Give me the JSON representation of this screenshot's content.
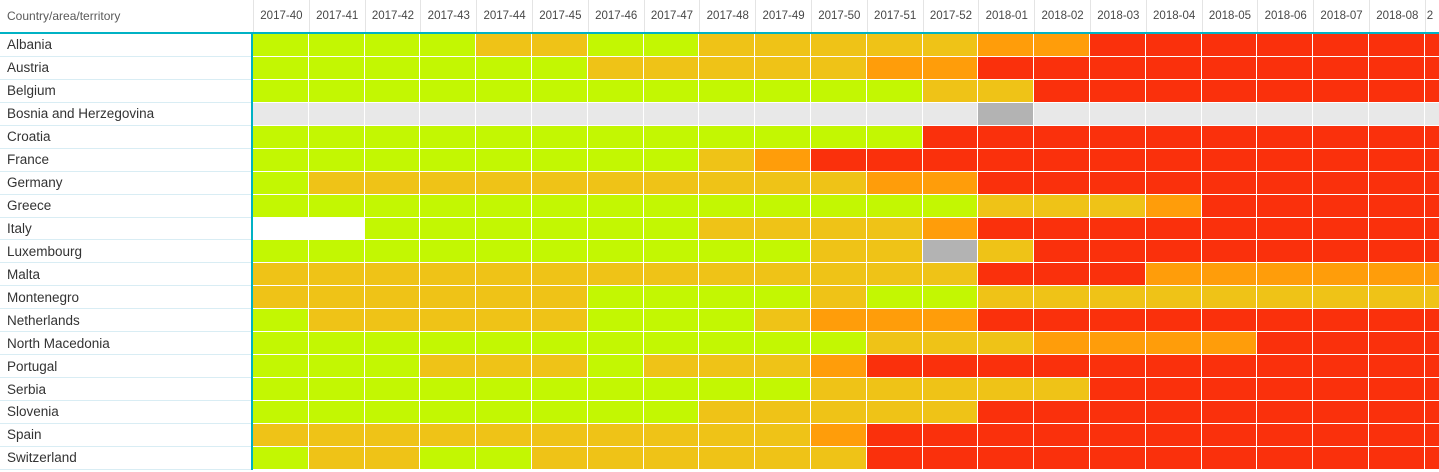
{
  "chart_data": {
    "type": "heatmap",
    "title": "",
    "corner_label": "Country/area/territory",
    "legend_position": "none",
    "grid": "white cell gaps",
    "columns": [
      "2017-40",
      "2017-41",
      "2017-42",
      "2017-43",
      "2017-44",
      "2017-45",
      "2017-46",
      "2017-47",
      "2017-48",
      "2017-49",
      "2017-50",
      "2017-51",
      "2017-52",
      "2018-01",
      "2018-02",
      "2018-03",
      "2018-04",
      "2018-05",
      "2018-06",
      "2018-07",
      "2018-08",
      "2"
    ],
    "value_legend": [
      "green",
      "yellow",
      "orange",
      "red",
      "gray",
      "darkgray",
      "white"
    ],
    "rows": [
      {
        "label": "Albania",
        "cells": [
          "green",
          "green",
          "green",
          "green",
          "yellow",
          "yellow",
          "green",
          "green",
          "yellow",
          "yellow",
          "yellow",
          "yellow",
          "yellow",
          "orange",
          "orange",
          "red",
          "red",
          "red",
          "red",
          "red",
          "red",
          "red"
        ]
      },
      {
        "label": "Austria",
        "cells": [
          "green",
          "green",
          "green",
          "green",
          "green",
          "green",
          "yellow",
          "yellow",
          "yellow",
          "yellow",
          "yellow",
          "orange",
          "orange",
          "red",
          "red",
          "red",
          "red",
          "red",
          "red",
          "red",
          "red",
          "red"
        ]
      },
      {
        "label": "Belgium",
        "cells": [
          "green",
          "green",
          "green",
          "green",
          "green",
          "green",
          "green",
          "green",
          "green",
          "green",
          "green",
          "green",
          "yellow",
          "yellow",
          "red",
          "red",
          "red",
          "red",
          "red",
          "red",
          "red",
          "red"
        ]
      },
      {
        "label": "Bosnia and Herzegovina",
        "cells": [
          "gray",
          "gray",
          "gray",
          "gray",
          "gray",
          "gray",
          "gray",
          "gray",
          "gray",
          "gray",
          "gray",
          "gray",
          "gray",
          "darkgray",
          "gray",
          "gray",
          "gray",
          "gray",
          "gray",
          "gray",
          "gray",
          "gray"
        ]
      },
      {
        "label": "Croatia",
        "cells": [
          "green",
          "green",
          "green",
          "green",
          "green",
          "green",
          "green",
          "green",
          "green",
          "green",
          "green",
          "green",
          "red",
          "red",
          "red",
          "red",
          "red",
          "red",
          "red",
          "red",
          "red",
          "red"
        ]
      },
      {
        "label": "France",
        "cells": [
          "green",
          "green",
          "green",
          "green",
          "green",
          "green",
          "green",
          "green",
          "yellow",
          "orange",
          "red",
          "red",
          "red",
          "red",
          "red",
          "red",
          "red",
          "red",
          "red",
          "red",
          "red",
          "red"
        ]
      },
      {
        "label": "Germany",
        "cells": [
          "green",
          "yellow",
          "yellow",
          "yellow",
          "yellow",
          "yellow",
          "yellow",
          "yellow",
          "yellow",
          "yellow",
          "yellow",
          "orange",
          "orange",
          "red",
          "red",
          "red",
          "red",
          "red",
          "red",
          "red",
          "red",
          "red"
        ]
      },
      {
        "label": "Greece",
        "cells": [
          "green",
          "green",
          "green",
          "green",
          "green",
          "green",
          "green",
          "green",
          "green",
          "green",
          "green",
          "green",
          "green",
          "yellow",
          "yellow",
          "yellow",
          "orange",
          "red",
          "red",
          "red",
          "red",
          "red"
        ]
      },
      {
        "label": "Italy",
        "cells": [
          "white",
          "white",
          "green",
          "green",
          "green",
          "green",
          "green",
          "green",
          "yellow",
          "yellow",
          "yellow",
          "yellow",
          "orange",
          "red",
          "red",
          "red",
          "red",
          "red",
          "red",
          "red",
          "red",
          "red"
        ]
      },
      {
        "label": "Luxembourg",
        "cells": [
          "green",
          "green",
          "green",
          "green",
          "green",
          "green",
          "green",
          "green",
          "green",
          "green",
          "yellow",
          "yellow",
          "darkgray",
          "yellow",
          "red",
          "red",
          "red",
          "red",
          "red",
          "red",
          "red",
          "red"
        ]
      },
      {
        "label": "Malta",
        "cells": [
          "yellow",
          "yellow",
          "yellow",
          "yellow",
          "yellow",
          "yellow",
          "yellow",
          "yellow",
          "yellow",
          "yellow",
          "yellow",
          "yellow",
          "yellow",
          "red",
          "red",
          "red",
          "orange",
          "orange",
          "orange",
          "orange",
          "orange",
          "orange"
        ]
      },
      {
        "label": "Montenegro",
        "cells": [
          "yellow",
          "yellow",
          "yellow",
          "yellow",
          "yellow",
          "yellow",
          "green",
          "green",
          "green",
          "green",
          "yellow",
          "green",
          "green",
          "yellow",
          "yellow",
          "yellow",
          "yellow",
          "yellow",
          "yellow",
          "yellow",
          "yellow",
          "yellow"
        ]
      },
      {
        "label": "Netherlands",
        "cells": [
          "green",
          "yellow",
          "yellow",
          "yellow",
          "yellow",
          "yellow",
          "green",
          "green",
          "green",
          "yellow",
          "orange",
          "orange",
          "orange",
          "red",
          "red",
          "red",
          "red",
          "red",
          "red",
          "red",
          "red",
          "red"
        ]
      },
      {
        "label": "North Macedonia",
        "cells": [
          "green",
          "green",
          "green",
          "green",
          "green",
          "green",
          "green",
          "green",
          "green",
          "green",
          "green",
          "yellow",
          "yellow",
          "yellow",
          "orange",
          "orange",
          "orange",
          "orange",
          "red",
          "red",
          "red",
          "red"
        ]
      },
      {
        "label": "Portugal",
        "cells": [
          "green",
          "green",
          "green",
          "yellow",
          "yellow",
          "yellow",
          "green",
          "yellow",
          "yellow",
          "yellow",
          "orange",
          "red",
          "red",
          "red",
          "red",
          "red",
          "red",
          "red",
          "red",
          "red",
          "red",
          "red"
        ]
      },
      {
        "label": "Serbia",
        "cells": [
          "green",
          "green",
          "green",
          "green",
          "green",
          "green",
          "green",
          "green",
          "green",
          "green",
          "yellow",
          "yellow",
          "yellow",
          "yellow",
          "yellow",
          "red",
          "red",
          "red",
          "red",
          "red",
          "red",
          "red"
        ]
      },
      {
        "label": "Slovenia",
        "cells": [
          "green",
          "green",
          "green",
          "green",
          "green",
          "green",
          "green",
          "green",
          "yellow",
          "yellow",
          "yellow",
          "yellow",
          "yellow",
          "red",
          "red",
          "red",
          "red",
          "red",
          "red",
          "red",
          "red",
          "red"
        ]
      },
      {
        "label": "Spain",
        "cells": [
          "yellow",
          "yellow",
          "yellow",
          "yellow",
          "yellow",
          "yellow",
          "yellow",
          "yellow",
          "yellow",
          "yellow",
          "orange",
          "red",
          "red",
          "red",
          "red",
          "red",
          "red",
          "red",
          "red",
          "red",
          "red",
          "red"
        ]
      },
      {
        "label": "Switzerland",
        "cells": [
          "green",
          "yellow",
          "yellow",
          "green",
          "green",
          "yellow",
          "yellow",
          "yellow",
          "yellow",
          "yellow",
          "yellow",
          "red",
          "red",
          "red",
          "red",
          "red",
          "red",
          "red",
          "red",
          "red",
          "red",
          "red"
        ]
      }
    ]
  },
  "palette": {
    "green": "#C3F702",
    "yellow": "#EFC317",
    "orange": "#FF9D0A",
    "red": "#FA300C",
    "gray": "#E8E8E8",
    "darkgray": "#B3B3B3",
    "white": "#FFFFFF"
  },
  "accent": {
    "divider_teal": "#00B2C4",
    "row_separator": "#D9EDF4",
    "header_text": "#474747",
    "label_text": "#333333"
  }
}
